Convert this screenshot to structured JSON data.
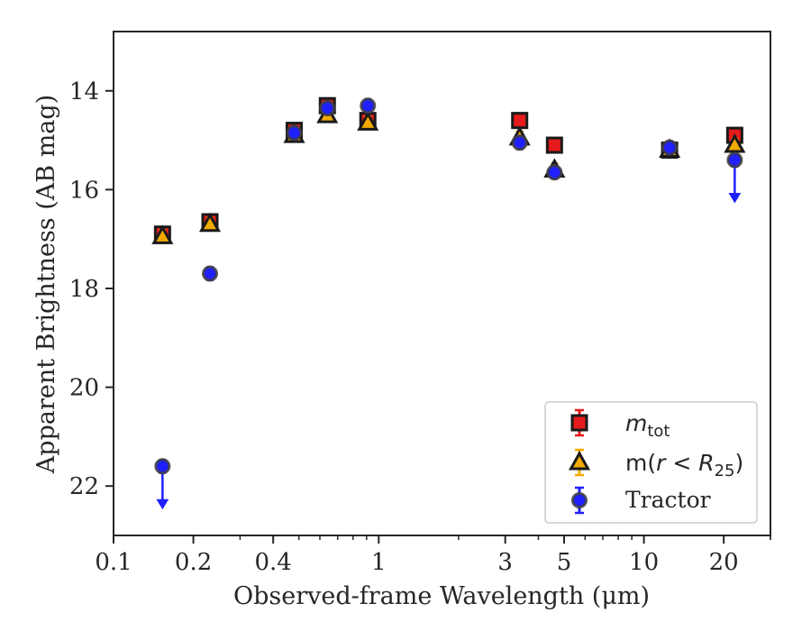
{
  "chart_data": {
    "type": "scatter",
    "title": "",
    "xlabel": "Observed-frame Wavelength (μm)",
    "ylabel": "Apparent Brightness (AB mag)",
    "xscale": "log",
    "yscale": "linear",
    "y_inverted": true,
    "xlim": [
      0.1,
      30
    ],
    "ylim": [
      23.0,
      12.8
    ],
    "xticks": [
      {
        "value": 0.1,
        "label": "0.1"
      },
      {
        "value": 0.2,
        "label": "0.2"
      },
      {
        "value": 0.4,
        "label": "0.4"
      },
      {
        "value": 1,
        "label": "1"
      },
      {
        "value": 3,
        "label": "3"
      },
      {
        "value": 5,
        "label": "5"
      },
      {
        "value": 10,
        "label": "10"
      },
      {
        "value": 20,
        "label": "20"
      }
    ],
    "yticks": [
      {
        "value": 14,
        "label": "14"
      },
      {
        "value": 16,
        "label": "16"
      },
      {
        "value": 18,
        "label": "18"
      },
      {
        "value": 20,
        "label": "20"
      },
      {
        "value": 22,
        "label": "22"
      }
    ],
    "grid": false,
    "legend_position": "lower-right",
    "series": [
      {
        "key": "mtot",
        "legend_label": "m_tot",
        "marker": "square",
        "color": "#e41a1c",
        "x": [
          0.153,
          0.231,
          0.48,
          0.64,
          0.91,
          3.4,
          4.6,
          12.5,
          22.0
        ],
        "y": [
          16.9,
          16.65,
          14.8,
          14.3,
          14.6,
          14.6,
          15.1,
          15.2,
          14.9
        ],
        "upper_limit": [
          false,
          false,
          false,
          false,
          false,
          false,
          false,
          false,
          false
        ]
      },
      {
        "key": "mr25",
        "legend_label": "m(r < R25)",
        "marker": "triangle",
        "color": "#f2a900",
        "x": [
          0.153,
          0.231,
          0.48,
          0.64,
          0.91,
          3.4,
          4.6,
          12.5,
          22.0
        ],
        "y": [
          16.95,
          16.7,
          14.9,
          14.5,
          14.65,
          14.95,
          15.6,
          15.2,
          15.1
        ],
        "upper_limit": [
          false,
          false,
          false,
          false,
          false,
          false,
          false,
          false,
          false
        ]
      },
      {
        "key": "tractor",
        "legend_label": "Tractor",
        "marker": "circle",
        "color": "#1f1fff",
        "x": [
          0.153,
          0.231,
          0.48,
          0.64,
          0.91,
          3.4,
          4.6,
          12.5,
          22.0
        ],
        "y": [
          21.6,
          17.7,
          14.85,
          14.35,
          14.3,
          15.05,
          15.65,
          15.15,
          15.4
        ],
        "upper_limit": [
          true,
          false,
          false,
          false,
          false,
          false,
          false,
          false,
          true
        ]
      }
    ]
  },
  "legend": {
    "mtot": {
      "base": "m",
      "sub": "tot"
    },
    "mr25": {
      "prefix": "m(",
      "var": "r",
      "op": " < ",
      "R": "R",
      "sub": "25",
      "suffix": ")"
    },
    "tractor": {
      "text": "Tractor"
    }
  },
  "colors": {
    "axis": "#262626",
    "marker_edge": "#1a1a1a",
    "legend_border": "#cccccc"
  }
}
